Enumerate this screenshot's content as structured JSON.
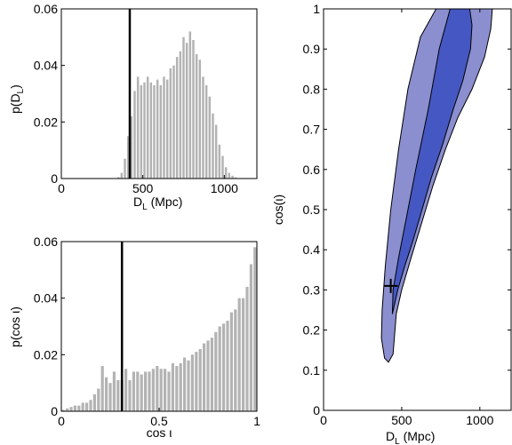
{
  "chart_data": [
    {
      "id": "hist_dl",
      "type": "bar",
      "xlabel": "D_L (Mpc)",
      "ylabel": "p(D_L)",
      "xlim": [
        0,
        1200
      ],
      "ylim": [
        0,
        0.06
      ],
      "xticks": [
        0,
        500,
        1000
      ],
      "xtick_labels": [
        "0",
        "500",
        "1000"
      ],
      "yticks": [
        0,
        0.02,
        0.04,
        0.06
      ],
      "ytick_labels": [
        "0",
        "0.02",
        "0.04",
        "0.06"
      ],
      "bar_color": "#b3b3b3",
      "bin_width": 20,
      "x": [
        350,
        370,
        390,
        410,
        430,
        450,
        470,
        490,
        510,
        530,
        550,
        570,
        590,
        610,
        630,
        650,
        670,
        690,
        710,
        730,
        750,
        770,
        790,
        810,
        830,
        850,
        870,
        890,
        910,
        930,
        950,
        970,
        990,
        1010,
        1030,
        1050,
        1070
      ],
      "values": [
        0.0005,
        0.002,
        0.007,
        0.015,
        0.022,
        0.031,
        0.036,
        0.033,
        0.034,
        0.036,
        0.034,
        0.033,
        0.035,
        0.033,
        0.036,
        0.035,
        0.039,
        0.04,
        0.043,
        0.045,
        0.05,
        0.048,
        0.052,
        0.049,
        0.044,
        0.042,
        0.036,
        0.033,
        0.029,
        0.023,
        0.019,
        0.012,
        0.008,
        0.004,
        0.002,
        0.001,
        0.0004
      ],
      "marker_line_x": 420,
      "marker_color": "#000000"
    },
    {
      "id": "hist_cos",
      "type": "bar",
      "xlabel": "cos ι",
      "ylabel": "p(cos ι)",
      "xlim": [
        0,
        1
      ],
      "ylim": [
        0,
        0.06
      ],
      "xticks": [
        0,
        0.5,
        1
      ],
      "xtick_labels": [
        "0",
        "0.5",
        "1"
      ],
      "yticks": [
        0,
        0.02,
        0.04,
        0.06
      ],
      "ytick_labels": [
        "0",
        "0.02",
        "0.04",
        "0.06"
      ],
      "bar_color": "#b3b3b3",
      "bin_width": 0.02,
      "x": [
        0.01,
        0.03,
        0.05,
        0.07,
        0.09,
        0.11,
        0.13,
        0.15,
        0.17,
        0.19,
        0.21,
        0.23,
        0.25,
        0.27,
        0.29,
        0.31,
        0.33,
        0.35,
        0.37,
        0.39,
        0.41,
        0.43,
        0.45,
        0.47,
        0.49,
        0.51,
        0.53,
        0.55,
        0.57,
        0.59,
        0.61,
        0.63,
        0.65,
        0.67,
        0.69,
        0.71,
        0.73,
        0.75,
        0.77,
        0.79,
        0.81,
        0.83,
        0.85,
        0.87,
        0.89,
        0.91,
        0.93,
        0.95,
        0.97,
        0.99
      ],
      "values": [
        0.0005,
        0.001,
        0.0015,
        0.002,
        0.002,
        0.003,
        0.003,
        0.004,
        0.006,
        0.008,
        0.016,
        0.012,
        0.01,
        0.014,
        0.011,
        0.011,
        0.015,
        0.011,
        0.014,
        0.014,
        0.013,
        0.014,
        0.014,
        0.015,
        0.016,
        0.015,
        0.015,
        0.014,
        0.017,
        0.016,
        0.017,
        0.019,
        0.018,
        0.02,
        0.021,
        0.022,
        0.024,
        0.025,
        0.026,
        0.028,
        0.03,
        0.031,
        0.032,
        0.035,
        0.036,
        0.04,
        0.04,
        0.044,
        0.052,
        0.058
      ],
      "marker_line_x": 0.31,
      "marker_color": "#000000"
    },
    {
      "id": "contour",
      "type": "contour",
      "xlabel": "D_L (Mpc)",
      "ylabel": "cos(ι)",
      "xlim": [
        0,
        1200
      ],
      "ylim": [
        0,
        1
      ],
      "xticks": [
        0,
        500,
        1000
      ],
      "xtick_labels": [
        "0",
        "500",
        "1000"
      ],
      "yticks": [
        0,
        0.1,
        0.2,
        0.3,
        0.4,
        0.5,
        0.6,
        0.7,
        0.8,
        0.9,
        1
      ],
      "ytick_labels": [
        "0",
        "0.1",
        "0.2",
        "0.3",
        "0.4",
        "0.5",
        "0.6",
        "0.7",
        "0.8",
        "0.9",
        "1"
      ],
      "regions": [
        {
          "color": "#8b8fcf",
          "points": [
            [
              390,
              0.13
            ],
            [
              415,
              0.12
            ],
            [
              445,
              0.14
            ],
            [
              465,
              0.24
            ],
            [
              500,
              0.3
            ],
            [
              560,
              0.38
            ],
            [
              630,
              0.47
            ],
            [
              700,
              0.56
            ],
            [
              780,
              0.65
            ],
            [
              860,
              0.73
            ],
            [
              950,
              0.8
            ],
            [
              1030,
              0.88
            ],
            [
              1070,
              0.95
            ],
            [
              1080,
              1.0
            ],
            [
              720,
              1.0
            ],
            [
              620,
              0.93
            ],
            [
              540,
              0.8
            ],
            [
              480,
              0.65
            ],
            [
              430,
              0.5
            ],
            [
              395,
              0.36
            ],
            [
              375,
              0.25
            ],
            [
              370,
              0.18
            ]
          ]
        },
        {
          "color": "#4557c2",
          "points": [
            [
              440,
              0.24
            ],
            [
              475,
              0.3
            ],
            [
              520,
              0.36
            ],
            [
              570,
              0.42
            ],
            [
              630,
              0.5
            ],
            [
              690,
              0.58
            ],
            [
              760,
              0.66
            ],
            [
              830,
              0.75
            ],
            [
              890,
              0.82
            ],
            [
              940,
              0.9
            ],
            [
              950,
              0.96
            ],
            [
              935,
              1.0
            ],
            [
              810,
              1.0
            ],
            [
              740,
              0.9
            ],
            [
              670,
              0.75
            ],
            [
              590,
              0.6
            ],
            [
              530,
              0.48
            ],
            [
              480,
              0.38
            ],
            [
              445,
              0.3
            ]
          ]
        }
      ],
      "injection_point": [
        430,
        0.31
      ],
      "injection_marker": "+"
    }
  ]
}
